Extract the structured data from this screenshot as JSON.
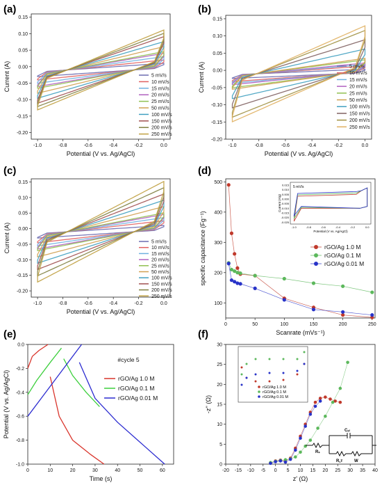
{
  "panels": [
    {
      "label": "(a)"
    },
    {
      "label": "(b)"
    },
    {
      "label": "(c)"
    },
    {
      "label": "(d)"
    },
    {
      "label": "(e)"
    },
    {
      "label": "(f)"
    }
  ],
  "chart_data": [
    {
      "id": "a",
      "type": "line",
      "xlabel": "Potential (V vs. Ag/AgCl)",
      "ylabel": "Current (A)",
      "xlim": [
        -1.05,
        0.05
      ],
      "ylim": [
        -0.22,
        0.16
      ],
      "xticks": [
        "-1.0",
        "-0.8",
        "-0.6",
        "-0.4",
        "-0.2",
        "0.0"
      ],
      "yticks": [
        "0.15",
        "0.10",
        "0.05",
        "0.00",
        "-0.05",
        "-0.10",
        "-0.15",
        "-0.20"
      ],
      "legend_position": "lower-right",
      "series": [
        {
          "name": "5 mV/s",
          "color": "#6b6bb0",
          "amp": 0.02
        },
        {
          "name": "10 mV/s",
          "color": "#e06060",
          "amp": 0.03
        },
        {
          "name": "15 mV/s",
          "color": "#6fb0e0",
          "amp": 0.04
        },
        {
          "name": "20 mV/s",
          "color": "#b060c0",
          "amp": 0.05
        },
        {
          "name": "25 mV/s",
          "color": "#90c050",
          "amp": 0.055
        },
        {
          "name": "50 mV/s",
          "color": "#d0a050",
          "amp": 0.07
        },
        {
          "name": "100 mV/s",
          "color": "#40a0c0",
          "amp": 0.085
        },
        {
          "name": "150 mV/s",
          "color": "#a05050",
          "amp": 0.1
        },
        {
          "name": "200 mV/s",
          "color": "#808040",
          "amp": 0.11
        },
        {
          "name": "250 mV/s",
          "color": "#c0a040",
          "amp": 0.12
        }
      ]
    },
    {
      "id": "b",
      "type": "line",
      "xlabel": "Potential (V vs. Ag/AgCl)",
      "ylabel": "Current (A)",
      "xlim": [
        -1.05,
        0.05
      ],
      "ylim": [
        -0.2,
        0.16
      ],
      "xticks": [
        "-1.0",
        "-0.8",
        "-0.6",
        "-0.4",
        "-0.2",
        "0.0"
      ],
      "yticks": [
        "0.15",
        "0.10",
        "0.05",
        "0.00",
        "-0.05",
        "-0.10",
        "-0.15",
        "-0.20"
      ],
      "legend_position": "right",
      "series": [
        {
          "name": "5 mV/s",
          "color": "#6b6bb0",
          "amp": 0.015
        },
        {
          "name": "10 mV/s",
          "color": "#e06060",
          "amp": 0.025
        },
        {
          "name": "15 mV/s",
          "color": "#6fb0e0",
          "amp": 0.03
        },
        {
          "name": "20 mV/s",
          "color": "#b060c0",
          "amp": 0.035
        },
        {
          "name": "25 mV/s",
          "color": "#90c050",
          "amp": 0.045
        },
        {
          "name": "50 mV/s",
          "color": "#d0a050",
          "amp": 0.05
        },
        {
          "name": "100 mV/s",
          "color": "#40a0c0",
          "amp": 0.08
        },
        {
          "name": "150 mV/s",
          "color": "#806060",
          "amp": 0.11
        },
        {
          "name": "200 mV/s",
          "color": "#a09040",
          "amp": 0.14
        },
        {
          "name": "250 mV/s",
          "color": "#e0b060",
          "amp": 0.155
        }
      ]
    },
    {
      "id": "c",
      "type": "line",
      "xlabel": "Potential (V vs. Ag/AgCl)",
      "ylabel": "Current (A)",
      "xlim": [
        -1.05,
        0.05
      ],
      "ylim": [
        -0.22,
        0.16
      ],
      "xticks": [
        "-1.0",
        "-0.8",
        "-0.6",
        "-0.4",
        "-0.2",
        "0.0"
      ],
      "yticks": [
        "0.15",
        "0.10",
        "0.05",
        "0.00",
        "-0.05",
        "-0.10",
        "-0.15",
        "-0.20"
      ],
      "legend_position": "lower-right",
      "series": [
        {
          "name": "5 mV/s",
          "color": "#6b6bb0",
          "amp": 0.02
        },
        {
          "name": "10 mV/s",
          "color": "#e06060",
          "amp": 0.035
        },
        {
          "name": "15 mV/s",
          "color": "#6fb0e0",
          "amp": 0.045
        },
        {
          "name": "20 mV/s",
          "color": "#b060c0",
          "amp": 0.055
        },
        {
          "name": "25 mV/s",
          "color": "#90c050",
          "amp": 0.06
        },
        {
          "name": "50 mV/s",
          "color": "#d0a050",
          "amp": 0.08
        },
        {
          "name": "100 mV/s",
          "color": "#40a0c0",
          "amp": 0.1
        },
        {
          "name": "150 mV/s",
          "color": "#a05050",
          "amp": 0.12
        },
        {
          "name": "200 mV/s",
          "color": "#808040",
          "amp": 0.14
        },
        {
          "name": "250 mV/s",
          "color": "#c0a040",
          "amp": 0.16
        }
      ]
    },
    {
      "id": "d",
      "type": "scatter",
      "xlabel": "Scanrate (mVs⁻¹)",
      "ylabel": "specific capacitance (Fg⁻¹)",
      "xlim": [
        0,
        255
      ],
      "ylim": [
        50,
        510
      ],
      "xticks": [
        "0",
        "50",
        "100",
        "150",
        "200",
        "250"
      ],
      "yticks": [
        "500",
        "400",
        "300",
        "200",
        "100"
      ],
      "legend_position": "middle-right",
      "x": [
        5,
        10,
        15,
        20,
        25,
        50,
        100,
        150,
        200,
        250
      ],
      "series": [
        {
          "name": "rGO/Ag 1.0 M",
          "color": "#c0392b",
          "values": [
            490,
            330,
            262,
            215,
            195,
            190,
            115,
            85,
            60,
            52
          ]
        },
        {
          "name": "rGO/Ag 0.1 M",
          "color": "#5cb85c",
          "values": [
            232,
            210,
            205,
            200,
            198,
            190,
            180,
            165,
            155,
            135
          ]
        },
        {
          "name": "rGO/Ag 0.01 M",
          "color": "#2833c8",
          "values": [
            230,
            175,
            170,
            165,
            163,
            148,
            110,
            78,
            70,
            60
          ]
        }
      ],
      "inset": {
        "title": "5 mV/s",
        "xlabel": "Potential (V vs. Ag/AgCl)",
        "ylabel": "Current (A/g)",
        "xticks": [
          "-1.0",
          "-0.8",
          "-0.6",
          "-0.4",
          "-0.2",
          "0.0"
        ],
        "yticks": [
          "0.015",
          "0.010",
          "0.005",
          "0.000",
          "-0.005",
          "-0.010",
          "-0.015",
          "-0.020",
          "-0.025"
        ]
      }
    },
    {
      "id": "e",
      "type": "line",
      "title": "#cycle 5",
      "xlabel": "Time (s)",
      "ylabel": "Potential (V vs. Ag/AgCl)",
      "xlim": [
        0,
        65
      ],
      "ylim": [
        -1.0,
        0.0
      ],
      "xticks": [
        "0",
        "10",
        "20",
        "30",
        "40",
        "50",
        "60"
      ],
      "yticks": [
        "0.0",
        "-0.2",
        "-0.4",
        "-0.6",
        "-0.8",
        "-1.0"
      ],
      "legend_position": "right",
      "series": [
        {
          "name": "rGO/Ag 1.0 M",
          "color": "#d9342b"
        },
        {
          "name": "rGO/Ag 0.1 M",
          "color": "#3ccf3c"
        },
        {
          "name": "rGO/Ag 0.01 M",
          "color": "#2b2bd0"
        }
      ]
    },
    {
      "id": "f",
      "type": "scatter",
      "xlabel": "z' (Ω)",
      "ylabel": "-z'' (Ω)",
      "xlim": [
        -20,
        40
      ],
      "ylim": [
        0,
        30
      ],
      "xticks": [
        "-20",
        "-15",
        "-10",
        "-5",
        "0",
        "5",
        "10",
        "15",
        "20",
        "25",
        "30",
        "35",
        "40"
      ],
      "yticks": [
        "30",
        "25",
        "20",
        "15",
        "10",
        "5",
        "0"
      ],
      "legend_position": "inset",
      "series": [
        {
          "name": "rGO/Ag 1.0 M",
          "color": "#c0392b"
        },
        {
          "name": "rGO/Ag 0.1 M",
          "color": "#5cb85c"
        },
        {
          "name": "rGO/Ag 0.01 M",
          "color": "#2833c8"
        }
      ],
      "circuit": {
        "labels": [
          "Rₛ",
          "Cₑₗ",
          "R꜀ᴛ",
          "W"
        ]
      }
    }
  ]
}
